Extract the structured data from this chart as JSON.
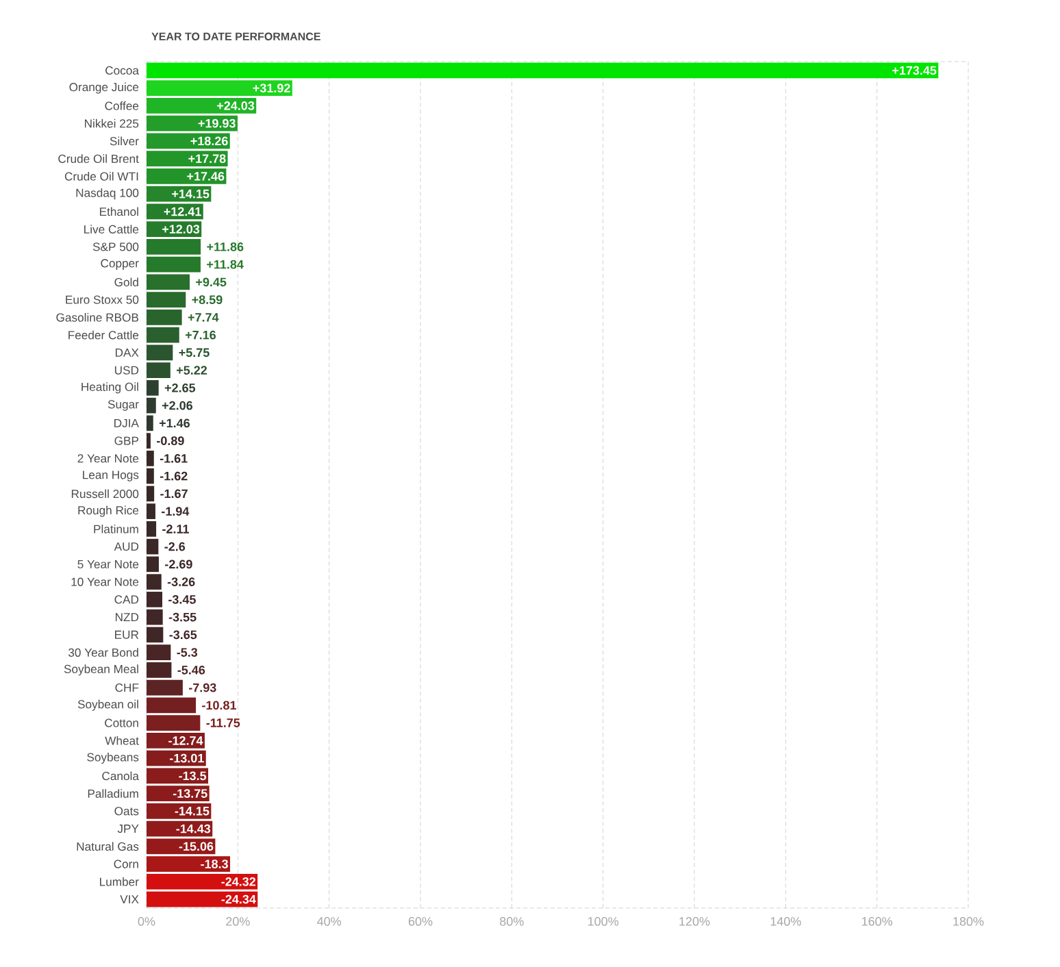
{
  "chart_data": {
    "type": "bar",
    "orientation": "horizontal",
    "title": "YEAR TO DATE PERFORMANCE",
    "categories": [
      "Cocoa",
      "Orange Juice",
      "Coffee",
      "Nikkei 225",
      "Silver",
      "Crude Oil Brent",
      "Crude Oil WTI",
      "Nasdaq 100",
      "Ethanol",
      "Live Cattle",
      "S&P 500",
      "Copper",
      "Gold",
      "Euro Stoxx 50",
      "Gasoline RBOB",
      "Feeder Cattle",
      "DAX",
      "USD",
      "Heating Oil",
      "Sugar",
      "DJIA",
      "GBP",
      "2 Year Note",
      "Lean Hogs",
      "Russell 2000",
      "Rough Rice",
      "Platinum",
      "AUD",
      "5 Year Note",
      "10 Year Note",
      "CAD",
      "NZD",
      "EUR",
      "30 Year Bond",
      "Soybean Meal",
      "CHF",
      "Soybean oil",
      "Cotton",
      "Wheat",
      "Soybeans",
      "Canola",
      "Palladium",
      "Oats",
      "JPY",
      "Natural Gas",
      "Corn",
      "Lumber",
      "VIX"
    ],
    "values": [
      173.45,
      31.92,
      24.03,
      19.93,
      18.26,
      17.78,
      17.46,
      14.15,
      12.41,
      12.03,
      11.86,
      11.84,
      9.45,
      8.59,
      7.74,
      7.16,
      5.75,
      5.22,
      2.65,
      2.06,
      1.46,
      -0.89,
      -1.61,
      -1.62,
      -1.67,
      -1.94,
      -2.11,
      -2.6,
      -2.69,
      -3.26,
      -3.45,
      -3.55,
      -3.65,
      -5.3,
      -5.46,
      -7.93,
      -10.81,
      -11.75,
      -12.74,
      -13.01,
      -13.5,
      -13.75,
      -14.15,
      -14.43,
      -15.06,
      -18.3,
      -24.32,
      -24.34
    ],
    "base": [
      0,
      0,
      0,
      0,
      0,
      0,
      0,
      0,
      0,
      0,
      0,
      0,
      0,
      0,
      0,
      0,
      0,
      0,
      0,
      0,
      0,
      0.89,
      1.61,
      1.62,
      1.67,
      1.94,
      2.11,
      2.6,
      2.69,
      3.26,
      3.45,
      3.55,
      3.65,
      5.3,
      5.46,
      7.93,
      10.81,
      11.75,
      12.74,
      13.01,
      13.5,
      13.75,
      14.15,
      14.43,
      15.06,
      18.3,
      24.32,
      24.34
    ],
    "value_labels": [
      "+173.45",
      "+31.92",
      "+24.03",
      "+19.93",
      "+18.26",
      "+17.78",
      "+17.46",
      "+14.15",
      "+12.41",
      "+12.03",
      "+11.86",
      "+11.84",
      "+9.45",
      "+8.59",
      "+7.74",
      "+7.16",
      "+5.75",
      "+5.22",
      "+2.65",
      "+2.06",
      "+1.46",
      "-0.89",
      "-1.61",
      "-1.62",
      "-1.67",
      "-1.94",
      "-2.11",
      "-2.6",
      "-2.69",
      "-3.26",
      "-3.45",
      "-3.55",
      "-3.65",
      "-5.3",
      "-5.46",
      "-7.93",
      "-10.81",
      "-11.75",
      "-12.74",
      "-13.01",
      "-13.5",
      "-13.75",
      "-14.15",
      "-14.43",
      "-15.06",
      "-18.3",
      "-24.32",
      "-24.34"
    ],
    "colors": [
      "#00e400",
      "#1ed41e",
      "#1fb526",
      "#229e29",
      "#22992a",
      "#23962a",
      "#23942a",
      "#25862b",
      "#257e2b",
      "#257c2b",
      "#267a2b",
      "#267a2b",
      "#28702c",
      "#296a2d",
      "#2a642d",
      "#2a602d",
      "#2b552e",
      "#2c512e",
      "#2d402f",
      "#2e3c30",
      "#2f3830",
      "#362828",
      "#372828",
      "#372828",
      "#372828",
      "#382828",
      "#392828",
      "#3b2727",
      "#3b2727",
      "#3e2727",
      "#3f2727",
      "#402727",
      "#402727",
      "#4a2525",
      "#4b2525",
      "#5c2424",
      "#742020",
      "#7c1f1f",
      "#841d1d",
      "#861d1d",
      "#8a1c1c",
      "#8c1c1c",
      "#8f1b1b",
      "#911b1b",
      "#961a1a",
      "#a91717",
      "#d40f0f",
      "#d40f0f"
    ],
    "xlim": [
      0,
      180
    ],
    "xticks": [
      {
        "value": 0,
        "label": "0%"
      },
      {
        "value": 20,
        "label": "20%"
      },
      {
        "value": 40,
        "label": "40%"
      },
      {
        "value": 60,
        "label": "60%"
      },
      {
        "value": 80,
        "label": "80%"
      },
      {
        "value": 100,
        "label": "100%"
      },
      {
        "value": 120,
        "label": "120%"
      },
      {
        "value": 140,
        "label": "140%"
      },
      {
        "value": 160,
        "label": "160%"
      },
      {
        "value": 180,
        "label": "180%"
      }
    ],
    "grid": "x"
  }
}
